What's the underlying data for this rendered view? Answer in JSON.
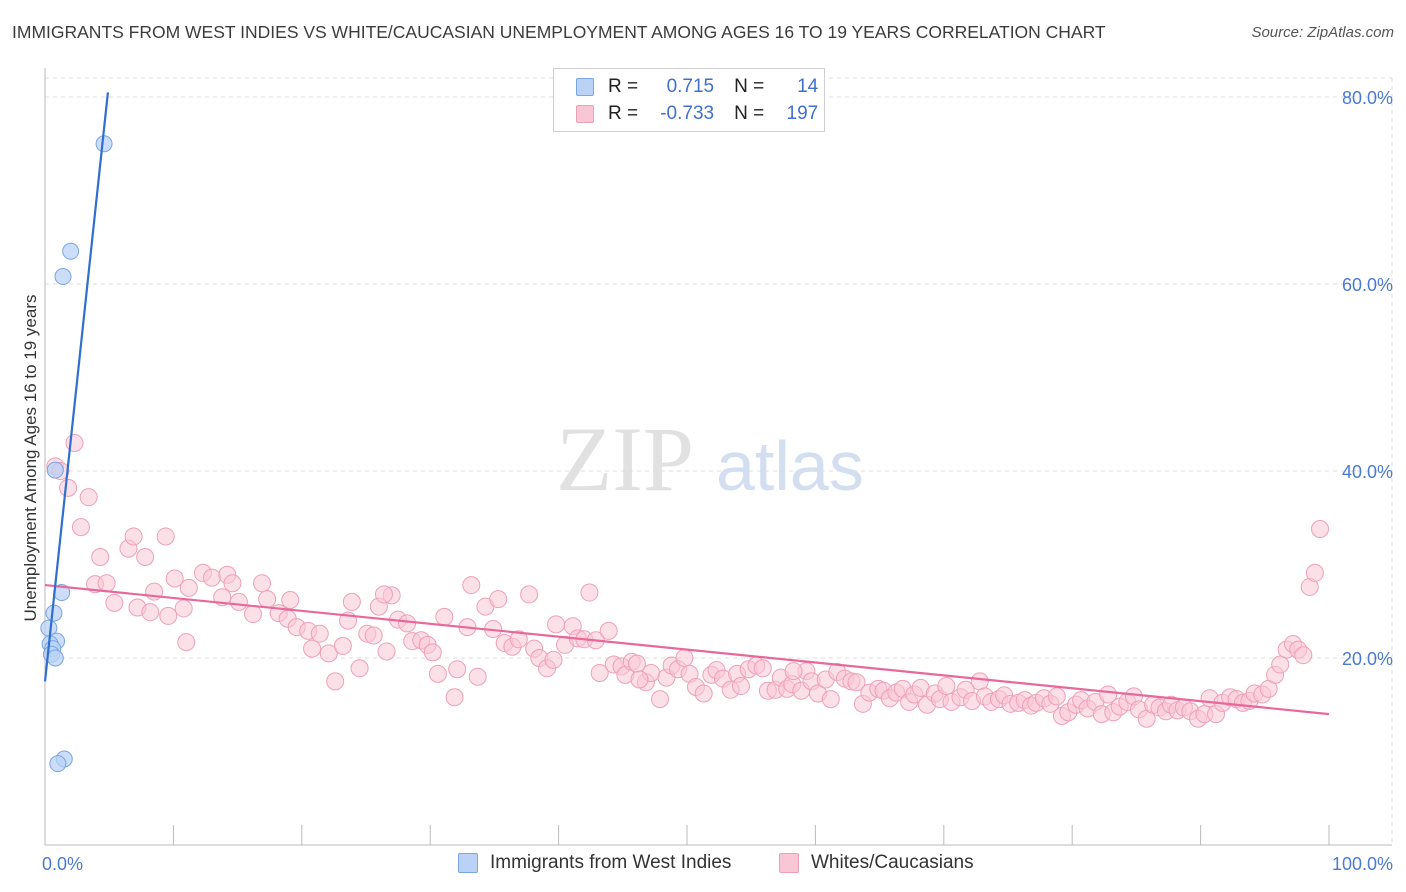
{
  "title": "IMMIGRANTS FROM WEST INDIES VS WHITE/CAUCASIAN UNEMPLOYMENT AMONG AGES 16 TO 19 YEARS CORRELATION CHART",
  "source": "Source: ZipAtlas.com",
  "watermark": {
    "zip": "ZIP",
    "atlas": "atlas"
  },
  "legend_top": {
    "rows": [
      {
        "r_label": "R =",
        "r_value": "0.715",
        "n_label": "N =",
        "n_value": "14"
      },
      {
        "r_label": "R =",
        "r_value": "-0.733",
        "n_label": "N =",
        "n_value": "197"
      }
    ]
  },
  "legend_bottom": {
    "items": [
      {
        "label": "Immigrants from West Indies"
      },
      {
        "label": "Whites/Caucasians"
      }
    ]
  },
  "colors": {
    "blue_fill": "#b9d2f5",
    "blue_stroke": "#7aa6e3",
    "blue_line": "#2f6fd0",
    "pink_fill": "#f9c6d6",
    "pink_stroke": "#eea0bb",
    "pink_line": "#e8689a",
    "grid": "#dcdcdc",
    "axis_text": "#4a7bd0"
  },
  "chart_data": {
    "type": "scatter",
    "title": "IMMIGRANTS FROM WEST INDIES VS WHITE/CAUCASIAN UNEMPLOYMENT AMONG AGES 16 TO 19 YEARS CORRELATION CHART",
    "xlabel": "",
    "ylabel": "Unemployment Among Ages 16 to 19 years",
    "xlim": [
      0,
      100
    ],
    "ylim": [
      0,
      82
    ],
    "x_tick_labels": [
      {
        "value": 0,
        "label": "0.0%"
      },
      {
        "value": 100,
        "label": "100.0%"
      }
    ],
    "y_tick_labels": [
      {
        "value": 20,
        "label": "20.0%"
      },
      {
        "value": 40,
        "label": "40.0%"
      },
      {
        "value": 60,
        "label": "60.0%"
      },
      {
        "value": 80,
        "label": "80.0%"
      }
    ],
    "series": [
      {
        "name": "Immigrants from West Indies",
        "color": "blue",
        "r": 0.715,
        "n": 14,
        "trendline": {
          "x": [
            0,
            4.9
          ],
          "y": [
            17.5,
            80.5
          ]
        },
        "points": [
          {
            "x": 4.6,
            "y": 75.0
          },
          {
            "x": 2.0,
            "y": 63.5
          },
          {
            "x": 1.4,
            "y": 60.8
          },
          {
            "x": 0.8,
            "y": 40.1
          },
          {
            "x": 1.3,
            "y": 27.0
          },
          {
            "x": 0.7,
            "y": 24.8
          },
          {
            "x": 0.3,
            "y": 23.2
          },
          {
            "x": 0.9,
            "y": 21.8
          },
          {
            "x": 0.4,
            "y": 21.5
          },
          {
            "x": 0.6,
            "y": 21.0
          },
          {
            "x": 0.5,
            "y": 20.4
          },
          {
            "x": 0.8,
            "y": 20.0
          },
          {
            "x": 1.5,
            "y": 9.2
          },
          {
            "x": 1.0,
            "y": 8.7
          }
        ]
      },
      {
        "name": "Whites/Caucasians",
        "color": "pink",
        "r": -0.733,
        "n": 197,
        "trendline": {
          "x": [
            0,
            100
          ],
          "y": [
            27.8,
            14.0
          ]
        },
        "points": [
          {
            "x": 0.8,
            "y": 40.5
          },
          {
            "x": 2.3,
            "y": 43.0
          },
          {
            "x": 1.8,
            "y": 38.2
          },
          {
            "x": 3.4,
            "y": 37.2
          },
          {
            "x": 2.8,
            "y": 34.0
          },
          {
            "x": 4.3,
            "y": 30.8
          },
          {
            "x": 6.5,
            "y": 31.7
          },
          {
            "x": 6.9,
            "y": 33.0
          },
          {
            "x": 7.8,
            "y": 30.8
          },
          {
            "x": 9.4,
            "y": 33.0
          },
          {
            "x": 3.9,
            "y": 27.9
          },
          {
            "x": 4.8,
            "y": 28.0
          },
          {
            "x": 5.4,
            "y": 25.9
          },
          {
            "x": 7.2,
            "y": 25.4
          },
          {
            "x": 8.5,
            "y": 27.1
          },
          {
            "x": 10.1,
            "y": 28.5
          },
          {
            "x": 11.2,
            "y": 27.5
          },
          {
            "x": 12.3,
            "y": 29.1
          },
          {
            "x": 13.0,
            "y": 28.6
          },
          {
            "x": 14.2,
            "y": 28.9
          },
          {
            "x": 8.2,
            "y": 24.9
          },
          {
            "x": 9.6,
            "y": 24.5
          },
          {
            "x": 10.8,
            "y": 25.3
          },
          {
            "x": 11.0,
            "y": 21.7
          },
          {
            "x": 13.8,
            "y": 26.5
          },
          {
            "x": 14.6,
            "y": 28.0
          },
          {
            "x": 15.1,
            "y": 26.0
          },
          {
            "x": 16.2,
            "y": 24.7
          },
          {
            "x": 16.9,
            "y": 28.0
          },
          {
            "x": 17.3,
            "y": 26.3
          },
          {
            "x": 18.2,
            "y": 24.8
          },
          {
            "x": 18.9,
            "y": 24.2
          },
          {
            "x": 19.1,
            "y": 26.2
          },
          {
            "x": 19.6,
            "y": 23.3
          },
          {
            "x": 20.5,
            "y": 22.9
          },
          {
            "x": 20.8,
            "y": 21.0
          },
          {
            "x": 21.4,
            "y": 22.6
          },
          {
            "x": 22.1,
            "y": 20.5
          },
          {
            "x": 22.6,
            "y": 17.5
          },
          {
            "x": 23.2,
            "y": 21.3
          },
          {
            "x": 23.6,
            "y": 24.0
          },
          {
            "x": 23.9,
            "y": 26.0
          },
          {
            "x": 24.5,
            "y": 18.9
          },
          {
            "x": 25.1,
            "y": 22.6
          },
          {
            "x": 25.6,
            "y": 22.4
          },
          {
            "x": 26.0,
            "y": 25.5
          },
          {
            "x": 26.6,
            "y": 20.7
          },
          {
            "x": 27.0,
            "y": 26.7
          },
          {
            "x": 27.5,
            "y": 24.1
          },
          {
            "x": 28.2,
            "y": 23.7
          },
          {
            "x": 28.6,
            "y": 21.8
          },
          {
            "x": 29.3,
            "y": 21.9
          },
          {
            "x": 29.8,
            "y": 21.4
          },
          {
            "x": 30.2,
            "y": 20.6
          },
          {
            "x": 30.6,
            "y": 18.3
          },
          {
            "x": 31.1,
            "y": 24.4
          },
          {
            "x": 31.9,
            "y": 15.8
          },
          {
            "x": 32.1,
            "y": 18.8
          },
          {
            "x": 32.9,
            "y": 23.3
          },
          {
            "x": 33.2,
            "y": 27.8
          },
          {
            "x": 33.7,
            "y": 18.0
          },
          {
            "x": 34.3,
            "y": 25.5
          },
          {
            "x": 34.9,
            "y": 23.1
          },
          {
            "x": 35.3,
            "y": 26.3
          },
          {
            "x": 35.8,
            "y": 21.6
          },
          {
            "x": 36.4,
            "y": 21.2
          },
          {
            "x": 36.9,
            "y": 22.0
          },
          {
            "x": 37.7,
            "y": 26.8
          },
          {
            "x": 38.1,
            "y": 21.0
          },
          {
            "x": 38.5,
            "y": 20.0
          },
          {
            "x": 39.1,
            "y": 18.9
          },
          {
            "x": 39.6,
            "y": 19.8
          },
          {
            "x": 39.8,
            "y": 23.6
          },
          {
            "x": 40.5,
            "y": 21.4
          },
          {
            "x": 41.1,
            "y": 23.4
          },
          {
            "x": 41.5,
            "y": 22.1
          },
          {
            "x": 42.0,
            "y": 22.0
          },
          {
            "x": 42.4,
            "y": 27.0
          },
          {
            "x": 42.9,
            "y": 21.9
          },
          {
            "x": 43.2,
            "y": 18.4
          },
          {
            "x": 43.9,
            "y": 22.9
          },
          {
            "x": 44.3,
            "y": 19.3
          },
          {
            "x": 44.9,
            "y": 19.1
          },
          {
            "x": 45.2,
            "y": 18.2
          },
          {
            "x": 45.7,
            "y": 19.6
          },
          {
            "x": 46.1,
            "y": 19.4
          },
          {
            "x": 46.8,
            "y": 17.4
          },
          {
            "x": 47.2,
            "y": 18.4
          },
          {
            "x": 47.9,
            "y": 15.6
          },
          {
            "x": 48.4,
            "y": 17.9
          },
          {
            "x": 48.8,
            "y": 19.2
          },
          {
            "x": 49.3,
            "y": 18.8
          },
          {
            "x": 49.8,
            "y": 20.0
          },
          {
            "x": 50.2,
            "y": 18.3
          },
          {
            "x": 50.7,
            "y": 16.9
          },
          {
            "x": 51.3,
            "y": 16.2
          },
          {
            "x": 51.9,
            "y": 18.2
          },
          {
            "x": 52.3,
            "y": 18.7
          },
          {
            "x": 52.8,
            "y": 17.8
          },
          {
            "x": 53.4,
            "y": 16.6
          },
          {
            "x": 53.9,
            "y": 18.3
          },
          {
            "x": 54.2,
            "y": 17.0
          },
          {
            "x": 54.8,
            "y": 18.8
          },
          {
            "x": 55.4,
            "y": 19.2
          },
          {
            "x": 55.9,
            "y": 18.9
          },
          {
            "x": 56.3,
            "y": 16.5
          },
          {
            "x": 56.9,
            "y": 16.6
          },
          {
            "x": 57.3,
            "y": 17.9
          },
          {
            "x": 57.8,
            "y": 16.7
          },
          {
            "x": 58.2,
            "y": 17.2
          },
          {
            "x": 58.9,
            "y": 16.5
          },
          {
            "x": 59.3,
            "y": 18.6
          },
          {
            "x": 59.7,
            "y": 17.5
          },
          {
            "x": 60.2,
            "y": 16.2
          },
          {
            "x": 60.8,
            "y": 17.7
          },
          {
            "x": 61.2,
            "y": 15.6
          },
          {
            "x": 61.7,
            "y": 18.5
          },
          {
            "x": 62.3,
            "y": 17.8
          },
          {
            "x": 62.8,
            "y": 17.5
          },
          {
            "x": 63.2,
            "y": 17.4
          },
          {
            "x": 63.7,
            "y": 15.1
          },
          {
            "x": 64.2,
            "y": 16.3
          },
          {
            "x": 64.9,
            "y": 16.7
          },
          {
            "x": 65.3,
            "y": 16.5
          },
          {
            "x": 65.8,
            "y": 15.7
          },
          {
            "x": 66.3,
            "y": 16.3
          },
          {
            "x": 66.8,
            "y": 16.7
          },
          {
            "x": 67.3,
            "y": 15.3
          },
          {
            "x": 67.7,
            "y": 16.1
          },
          {
            "x": 68.2,
            "y": 16.8
          },
          {
            "x": 68.7,
            "y": 15.0
          },
          {
            "x": 69.3,
            "y": 16.2
          },
          {
            "x": 69.7,
            "y": 15.6
          },
          {
            "x": 70.2,
            "y": 17.0
          },
          {
            "x": 70.6,
            "y": 15.3
          },
          {
            "x": 71.3,
            "y": 15.8
          },
          {
            "x": 71.7,
            "y": 16.6
          },
          {
            "x": 72.2,
            "y": 15.4
          },
          {
            "x": 72.8,
            "y": 17.5
          },
          {
            "x": 73.2,
            "y": 15.9
          },
          {
            "x": 73.7,
            "y": 15.3
          },
          {
            "x": 74.3,
            "y": 15.6
          },
          {
            "x": 74.7,
            "y": 16.0
          },
          {
            "x": 75.2,
            "y": 15.1
          },
          {
            "x": 75.8,
            "y": 15.2
          },
          {
            "x": 76.3,
            "y": 15.5
          },
          {
            "x": 76.8,
            "y": 14.9
          },
          {
            "x": 77.2,
            "y": 15.2
          },
          {
            "x": 77.8,
            "y": 15.7
          },
          {
            "x": 78.3,
            "y": 15.1
          },
          {
            "x": 78.8,
            "y": 15.9
          },
          {
            "x": 79.2,
            "y": 13.8
          },
          {
            "x": 79.7,
            "y": 14.2
          },
          {
            "x": 80.3,
            "y": 15.0
          },
          {
            "x": 80.7,
            "y": 15.5
          },
          {
            "x": 81.2,
            "y": 14.6
          },
          {
            "x": 81.8,
            "y": 15.3
          },
          {
            "x": 82.3,
            "y": 14.0
          },
          {
            "x": 82.8,
            "y": 16.1
          },
          {
            "x": 83.2,
            "y": 14.2
          },
          {
            "x": 83.7,
            "y": 14.8
          },
          {
            "x": 84.3,
            "y": 15.3
          },
          {
            "x": 84.8,
            "y": 15.9
          },
          {
            "x": 85.2,
            "y": 14.5
          },
          {
            "x": 85.8,
            "y": 13.5
          },
          {
            "x": 86.3,
            "y": 15.0
          },
          {
            "x": 86.8,
            "y": 14.7
          },
          {
            "x": 87.3,
            "y": 14.3
          },
          {
            "x": 87.7,
            "y": 15.0
          },
          {
            "x": 88.2,
            "y": 14.4
          },
          {
            "x": 88.7,
            "y": 14.7
          },
          {
            "x": 89.2,
            "y": 14.3
          },
          {
            "x": 89.8,
            "y": 13.5
          },
          {
            "x": 90.3,
            "y": 14.0
          },
          {
            "x": 90.7,
            "y": 15.7
          },
          {
            "x": 91.2,
            "y": 14.0
          },
          {
            "x": 91.7,
            "y": 15.2
          },
          {
            "x": 92.3,
            "y": 15.8
          },
          {
            "x": 92.8,
            "y": 15.6
          },
          {
            "x": 93.3,
            "y": 15.2
          },
          {
            "x": 93.8,
            "y": 15.4
          },
          {
            "x": 94.2,
            "y": 16.2
          },
          {
            "x": 94.8,
            "y": 16.1
          },
          {
            "x": 95.3,
            "y": 16.7
          },
          {
            "x": 95.8,
            "y": 18.2
          },
          {
            "x": 96.2,
            "y": 19.3
          },
          {
            "x": 96.7,
            "y": 20.9
          },
          {
            "x": 97.2,
            "y": 21.5
          },
          {
            "x": 97.6,
            "y": 20.9
          },
          {
            "x": 98.0,
            "y": 20.3
          },
          {
            "x": 98.5,
            "y": 27.6
          },
          {
            "x": 98.9,
            "y": 29.1
          },
          {
            "x": 99.3,
            "y": 33.8
          },
          {
            "x": 1.2,
            "y": 40.0
          },
          {
            "x": 26.4,
            "y": 26.8
          },
          {
            "x": 46.3,
            "y": 17.7
          },
          {
            "x": 58.3,
            "y": 18.6
          }
        ]
      }
    ]
  }
}
